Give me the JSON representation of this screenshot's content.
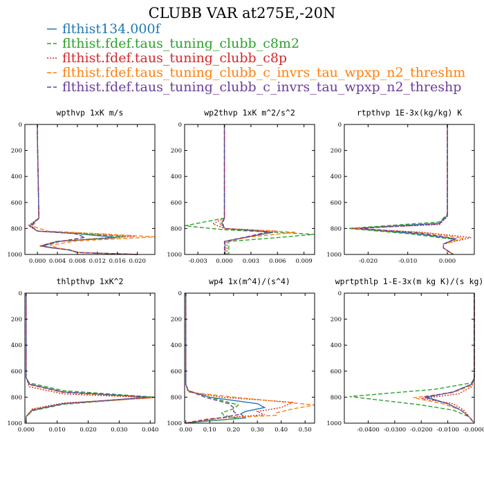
{
  "title": "CLUBB VAR at275E,-20N",
  "legend": [
    {
      "name": "flthist134.000f",
      "color": "#1f77b4",
      "dash": "solid"
    },
    {
      "name": "flthist.fdef.taus_tuning_clubb_c8m2",
      "color": "#2ca02c",
      "dash": "dashed"
    },
    {
      "name": "flthist.fdef.taus_tuning_clubb_c8p",
      "color": "#d62728",
      "dash": "dotted"
    },
    {
      "name": "flthist.fdef.taus_tuning_clubb_c_invrs_tau_wpxp_n2_threshm",
      "color": "#ff7f0e",
      "dash": "dashed"
    },
    {
      "name": "flthist.fdef.taus_tuning_clubb_c_invrs_tau_wpxp_n2_threshp",
      "color": "#6a3d9a",
      "dash": "dashed"
    }
  ],
  "chart_data": [
    {
      "type": "line",
      "title": "wpthvp  1xK m/s",
      "xlim": [
        -0.0025,
        0.0235
      ],
      "ylim": [
        1000,
        0
      ],
      "xticks": [
        0.0,
        0.004,
        0.008,
        0.012,
        0.016,
        0.02
      ],
      "xtick_labels": [
        "0.000",
        "0.004",
        "0.008",
        "0.012",
        "0.016",
        "0.020"
      ],
      "yticks": [
        0,
        200,
        400,
        600,
        800,
        1000
      ],
      "series": [
        {
          "x": [
            0.0,
            0.0,
            0.0002,
            0.0003,
            -0.0015,
            0.0,
            0.008,
            0.016,
            0.004,
            0.001,
            0.0032,
            0.0062,
            0.008,
            0.02
          ],
          "y": [
            0,
            100,
            500,
            720,
            780,
            820,
            840,
            870,
            900,
            935,
            950,
            965,
            985,
            1000
          ]
        },
        {
          "x": [
            0.0,
            0.0,
            0.0002,
            0.0003,
            -0.0015,
            0.0,
            0.008,
            0.0175,
            0.0038,
            0.0005,
            0.003,
            0.0064,
            0.0082,
            0.02
          ],
          "y": [
            0,
            100,
            500,
            720,
            780,
            820,
            840,
            862,
            900,
            935,
            950,
            965,
            985,
            1000
          ]
        },
        {
          "x": [
            0.0,
            0.0,
            0.0002,
            0.0003,
            -0.0018,
            0.0,
            0.0085,
            0.0195,
            0.0038,
            0.0005,
            0.003,
            0.0064,
            0.0082,
            0.02
          ],
          "y": [
            0,
            100,
            500,
            720,
            778,
            820,
            835,
            860,
            900,
            935,
            950,
            965,
            985,
            1000
          ]
        },
        {
          "x": [
            0.0,
            0.0,
            0.0002,
            0.0003,
            -0.001,
            0.002,
            0.012,
            0.0235,
            0.008,
            0.0025,
            0.004,
            0.0064,
            0.0082,
            0.02
          ],
          "y": [
            0,
            100,
            500,
            720,
            782,
            820,
            840,
            865,
            895,
            930,
            950,
            965,
            985,
            1000
          ]
        },
        {
          "x": [
            0.0,
            0.0,
            0.0002,
            0.0003,
            -0.0013,
            0.0,
            0.0075,
            0.0095,
            0.0045,
            0.001,
            0.003,
            0.0064,
            0.0082,
            0.02
          ],
          "y": [
            0,
            100,
            500,
            720,
            780,
            820,
            840,
            868,
            900,
            935,
            950,
            965,
            985,
            1000
          ]
        }
      ]
    },
    {
      "type": "line",
      "title": "wp2thvp  1xK m^2/s^2",
      "xlim": [
        -0.0045,
        0.0102
      ],
      "ylim": [
        1000,
        0
      ],
      "xticks": [
        -0.003,
        0.0,
        0.003,
        0.006,
        0.009
      ],
      "xtick_labels": [
        "-0.003",
        "0.000",
        "0.003",
        "0.006",
        "0.009"
      ],
      "yticks": [
        0,
        200,
        400,
        600,
        800,
        1000
      ],
      "series": [
        {
          "x": [
            0.0,
            0.0,
            0.0,
            -0.0003,
            0.0,
            0.0055,
            0.003,
            0.0,
            0.0001,
            0.0001
          ],
          "y": [
            0,
            500,
            720,
            760,
            800,
            830,
            860,
            900,
            950,
            1000
          ]
        },
        {
          "x": [
            0.0,
            0.0,
            0.0,
            -0.0045,
            0.0,
            0.0102,
            0.006,
            0.0005,
            0.0005,
            0.0005
          ],
          "y": [
            0,
            500,
            720,
            780,
            810,
            845,
            870,
            900,
            950,
            1000
          ]
        },
        {
          "x": [
            0.0,
            0.0,
            0.0,
            -0.0013,
            0.0,
            0.006,
            0.003,
            0.0003,
            0.0003,
            0.0003
          ],
          "y": [
            0,
            500,
            720,
            765,
            800,
            820,
            860,
            900,
            950,
            1000
          ]
        },
        {
          "x": [
            0.0,
            0.0,
            0.0,
            -0.0005,
            0.0,
            0.008,
            0.003,
            0.0001,
            0.0001,
            0.0001
          ],
          "y": [
            0,
            500,
            720,
            765,
            800,
            830,
            865,
            900,
            950,
            1000
          ]
        },
        {
          "x": [
            0.0,
            0.0,
            0.0,
            -0.0002,
            0.0,
            0.005,
            0.0028,
            0.0,
            0.0,
            0.0
          ],
          "y": [
            0,
            500,
            720,
            760,
            800,
            825,
            860,
            900,
            950,
            1000
          ]
        }
      ]
    },
    {
      "type": "line",
      "title": "rtpthvp  1E-3x(kg/kg) K",
      "xlim": [
        -0.026,
        0.0068
      ],
      "ylim": [
        1000,
        0
      ],
      "xticks": [
        -0.02,
        -0.01,
        0.0
      ],
      "xtick_labels": [
        "-0.020",
        "-0.010",
        "0.000"
      ],
      "yticks": [
        0,
        200,
        400,
        600,
        800,
        1000
      ],
      "series": [
        {
          "x": [
            0.0,
            0.0,
            0.0,
            -0.002,
            -0.024,
            -0.008,
            0.002,
            -0.001,
            -0.001,
            0.0015
          ],
          "y": [
            0,
            500,
            700,
            760,
            800,
            840,
            880,
            920,
            950,
            1000
          ]
        },
        {
          "x": [
            0.0,
            0.0,
            0.0,
            -0.002,
            -0.025,
            -0.01,
            0.002,
            -0.001,
            -0.001,
            0.0015
          ],
          "y": [
            0,
            500,
            690,
            750,
            800,
            840,
            885,
            920,
            950,
            1000
          ]
        },
        {
          "x": [
            0.0,
            0.0,
            0.0,
            -0.002,
            -0.024,
            -0.006,
            0.006,
            -0.001,
            -0.001,
            0.0015
          ],
          "y": [
            0,
            500,
            710,
            770,
            800,
            830,
            870,
            920,
            950,
            1000
          ]
        },
        {
          "x": [
            0.0,
            0.0,
            0.0,
            -0.002,
            -0.023,
            -0.006,
            0.004,
            -0.001,
            -0.001,
            0.0015
          ],
          "y": [
            0,
            500,
            700,
            765,
            800,
            835,
            875,
            920,
            950,
            1000
          ]
        },
        {
          "x": [
            0.0,
            0.0,
            0.0,
            -0.002,
            -0.022,
            -0.007,
            0.002,
            -0.001,
            -0.001,
            0.0015
          ],
          "y": [
            0,
            500,
            700,
            765,
            800,
            835,
            880,
            920,
            950,
            1000
          ]
        }
      ]
    },
    {
      "type": "line",
      "title": "thlpthvp  1xK^2",
      "xlim": [
        -0.0004,
        0.0415
      ],
      "ylim": [
        1000,
        0
      ],
      "xticks": [
        0.0,
        0.01,
        0.02,
        0.03,
        0.04
      ],
      "xtick_labels": [
        "0.000",
        "0.010",
        "0.020",
        "0.030",
        "0.040"
      ],
      "yticks": [
        0,
        200,
        400,
        600,
        800,
        1000
      ],
      "series": [
        {
          "x": [
            0.0,
            0.0,
            0.0,
            0.001,
            0.012,
            0.04,
            0.012,
            0.002,
            0.0,
            0.0
          ],
          "y": [
            0,
            400,
            650,
            700,
            760,
            800,
            850,
            900,
            950,
            1000
          ]
        },
        {
          "x": [
            0.0,
            0.0,
            0.0,
            0.001,
            0.012,
            0.0415,
            0.012,
            0.002,
            0.0,
            0.0
          ],
          "y": [
            0,
            400,
            650,
            690,
            750,
            800,
            855,
            905,
            950,
            1000
          ]
        },
        {
          "x": [
            0.0,
            0.0,
            0.0,
            0.001,
            0.012,
            0.041,
            0.012,
            0.002,
            0.0,
            0.0
          ],
          "y": [
            0,
            400,
            650,
            720,
            775,
            805,
            845,
            890,
            950,
            1000
          ]
        },
        {
          "x": [
            0.0,
            0.0,
            0.0,
            0.001,
            0.012,
            0.041,
            0.012,
            0.002,
            0.0,
            0.0
          ],
          "y": [
            0,
            400,
            650,
            705,
            765,
            805,
            850,
            895,
            950,
            1000
          ]
        },
        {
          "x": [
            0.0,
            0.0,
            0.0,
            0.001,
            0.012,
            0.04,
            0.012,
            0.002,
            0.0,
            0.0
          ],
          "y": [
            0,
            400,
            650,
            700,
            760,
            800,
            850,
            900,
            950,
            1000
          ]
        }
      ]
    },
    {
      "type": "line",
      "title": "wp4  1x(m^4)/(s^4)",
      "xlim": [
        -0.005,
        0.54
      ],
      "ylim": [
        1000,
        0
      ],
      "xticks": [
        0.0,
        0.1,
        0.2,
        0.3,
        0.4,
        0.5
      ],
      "xtick_labels": [
        "0.00",
        "0.10",
        "0.20",
        "0.30",
        "0.40",
        "0.50"
      ],
      "yticks": [
        0,
        200,
        400,
        600,
        800,
        1000
      ],
      "series": [
        {
          "x": [
            0.0,
            0.0,
            0.0,
            0.01,
            0.1,
            0.3,
            0.33,
            0.25,
            0.23,
            0.25,
            0.05,
            0.0
          ],
          "y": [
            0,
            500,
            700,
            750,
            800,
            850,
            880,
            910,
            930,
            960,
            990,
            1000
          ]
        },
        {
          "x": [
            0.0,
            0.0,
            0.0,
            0.01,
            0.1,
            0.22,
            0.2,
            0.15,
            0.16,
            0.22,
            0.05,
            0.0
          ],
          "y": [
            0,
            500,
            700,
            750,
            800,
            860,
            890,
            920,
            940,
            965,
            990,
            1000
          ]
        },
        {
          "x": [
            0.0,
            0.0,
            0.0,
            0.01,
            0.15,
            0.45,
            0.4,
            0.3,
            0.33,
            0.15,
            0.03,
            0.0
          ],
          "y": [
            0,
            500,
            700,
            760,
            800,
            840,
            880,
            910,
            935,
            960,
            990,
            1000
          ]
        },
        {
          "x": [
            0.0,
            0.0,
            0.0,
            0.01,
            0.2,
            0.54,
            0.45,
            0.38,
            0.38,
            0.1,
            0.02,
            0.0
          ],
          "y": [
            0,
            500,
            700,
            760,
            800,
            860,
            890,
            920,
            940,
            965,
            990,
            1000
          ]
        },
        {
          "x": [
            0.0,
            0.0,
            0.0,
            0.01,
            0.08,
            0.18,
            0.2,
            0.2,
            0.22,
            0.14,
            0.03,
            0.0
          ],
          "y": [
            0,
            500,
            700,
            750,
            800,
            850,
            880,
            910,
            935,
            960,
            990,
            1000
          ]
        }
      ]
    },
    {
      "type": "line",
      "title": "wprtpthlp  1-E-3x(m kg K)/(s kg)",
      "xlim": [
        -0.049,
        0.0
      ],
      "ylim": [
        1000,
        0
      ],
      "xticks": [
        -0.04,
        -0.03,
        -0.02,
        -0.01,
        0.0
      ],
      "xtick_labels": [
        "-0.0400",
        "-0.0300",
        "-0.0200",
        "-0.0100",
        "-0.0000"
      ],
      "yticks": [
        0,
        200,
        400,
        600,
        800,
        1000
      ],
      "series": [
        {
          "x": [
            0.0,
            0.0,
            0.0,
            -0.001,
            -0.008,
            -0.018,
            -0.01,
            -0.005,
            -0.002,
            0.0
          ],
          "y": [
            0,
            400,
            650,
            700,
            760,
            800,
            850,
            900,
            950,
            1000
          ]
        },
        {
          "x": [
            0.0,
            0.0,
            0.0,
            -0.001,
            -0.015,
            -0.047,
            -0.02,
            -0.008,
            -0.002,
            0.0
          ],
          "y": [
            0,
            400,
            650,
            690,
            740,
            795,
            860,
            900,
            950,
            1000
          ]
        },
        {
          "x": [
            0.0,
            0.0,
            0.0,
            -0.001,
            -0.006,
            -0.02,
            -0.008,
            -0.004,
            -0.002,
            0.0
          ],
          "y": [
            0,
            400,
            650,
            720,
            775,
            810,
            850,
            900,
            950,
            1000
          ]
        },
        {
          "x": [
            0.0,
            0.0,
            0.0,
            -0.001,
            -0.008,
            -0.023,
            -0.012,
            -0.005,
            -0.002,
            0.0
          ],
          "y": [
            0,
            400,
            650,
            710,
            765,
            805,
            850,
            900,
            950,
            1000
          ]
        },
        {
          "x": [
            0.0,
            0.0,
            0.0,
            -0.001,
            -0.008,
            -0.019,
            -0.01,
            -0.005,
            -0.002,
            0.0
          ],
          "y": [
            0,
            400,
            650,
            700,
            760,
            800,
            850,
            900,
            950,
            1000
          ]
        }
      ]
    }
  ]
}
